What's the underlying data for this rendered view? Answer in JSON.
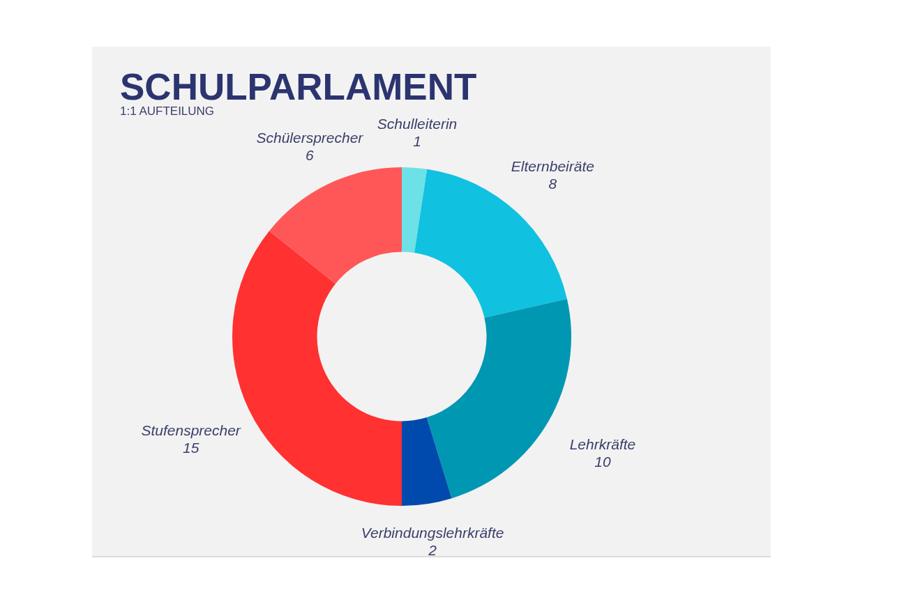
{
  "chart_data": {
    "type": "donut",
    "title": "SCHULPARLAMENT",
    "subtitle": "1:1 AUFTEILUNG",
    "categories": [
      "Schulleiterin",
      "Elternbeiräte",
      "Lehrkräfte",
      "Verbindungslehrkräfte",
      "Stufensprecher",
      "Schülersprecher"
    ],
    "values": [
      1,
      8,
      10,
      2,
      15,
      6
    ],
    "colors": [
      "#6ce1e6",
      "#10c1e0",
      "#0097b2",
      "#004aad",
      "#ff3131",
      "#ff5757"
    ],
    "data_labels": true
  }
}
